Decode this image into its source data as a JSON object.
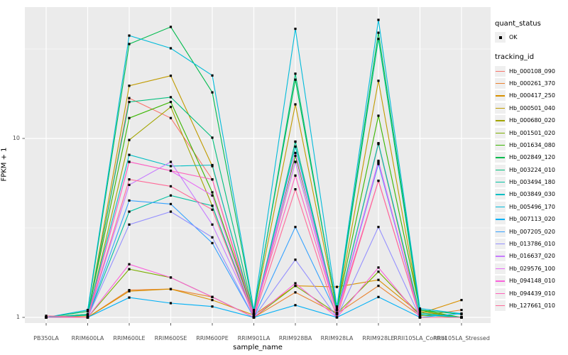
{
  "chart_data": {
    "type": "line",
    "xlabel": "sample_name",
    "ylabel": "FPKM + 1",
    "yscale": "log10",
    "ylim": [
      0.93,
      55
    ],
    "grid": "major-and-minor, white on grey panel",
    "legend_position": "right",
    "point_marker": "small black square (quant_status OK)",
    "point_color": "#000000",
    "panel_background": "#EBEBEB",
    "grid_color": "#FFFFFF",
    "yticks": [
      {
        "value": 1,
        "label": "1"
      },
      {
        "value": 10,
        "label": "10"
      }
    ],
    "minor_yticks": [
      3.162,
      31.62
    ],
    "categories": [
      "PB350LA",
      "RRIM600LA",
      "RRIM600LE",
      "RRIM600SE",
      "RRIM600PE",
      "RRIM901LA",
      "RRIM928BA",
      "RRIM928LA",
      "RRIM928LE",
      "RRII105LA_Control",
      "RRII105LA_Stressed"
    ],
    "series": [
      {
        "tracking_id": "Hb_000108_090",
        "quant_status": "OK",
        "color": "#F8766D",
        "values": [
          1.0,
          1.0,
          16.8,
          13.0,
          5.9,
          1.0,
          7.4,
          1.05,
          9.3,
          1.0,
          1.0
        ]
      },
      {
        "tracking_id": "Hb_000261_370",
        "quant_status": "OK",
        "color": "#EA8331",
        "values": [
          1.0,
          1.0,
          1.42,
          1.44,
          1.3,
          1.0,
          1.38,
          1.05,
          1.5,
          1.02,
          1.1
        ]
      },
      {
        "tracking_id": "Hb_000417_250",
        "quant_status": "OK",
        "color": "#D89000",
        "values": [
          1.0,
          1.0,
          1.4,
          1.44,
          1.25,
          1.03,
          1.5,
          1.48,
          1.62,
          1.05,
          1.25
        ]
      },
      {
        "tracking_id": "Hb_000501_040",
        "quant_status": "OK",
        "color": "#C09B00",
        "values": [
          1.0,
          1.02,
          19.7,
          22.4,
          7.0,
          1.05,
          15.5,
          1.1,
          21.0,
          1.08,
          1.0
        ]
      },
      {
        "tracking_id": "Hb_000680_020",
        "quant_status": "OK",
        "color": "#A3A500",
        "values": [
          1.0,
          1.0,
          9.8,
          15.0,
          4.2,
          1.0,
          9.6,
          1.05,
          9.4,
          1.0,
          1.0
        ]
      },
      {
        "tracking_id": "Hb_001501_020",
        "quant_status": "OK",
        "color": "#7CAE00",
        "values": [
          1.0,
          1.0,
          1.86,
          1.67,
          1.3,
          1.0,
          1.5,
          1.05,
          1.8,
          1.03,
          1.0
        ]
      },
      {
        "tracking_id": "Hb_001634_080",
        "quant_status": "OK",
        "color": "#39B600",
        "values": [
          1.0,
          1.04,
          13.0,
          16.0,
          5.0,
          1.04,
          8.0,
          1.1,
          13.4,
          1.1,
          1.0
        ]
      },
      {
        "tracking_id": "Hb_002849_120",
        "quant_status": "OK",
        "color": "#00BB4E",
        "values": [
          1.0,
          1.08,
          33.7,
          42.0,
          18.1,
          1.08,
          21.3,
          1.12,
          39.0,
          1.1,
          1.04
        ]
      },
      {
        "tracking_id": "Hb_003224_010",
        "quant_status": "OK",
        "color": "#00BF7D",
        "values": [
          1.0,
          1.04,
          16.0,
          17.0,
          10.1,
          1.05,
          23.0,
          1.1,
          36.0,
          1.06,
          1.0
        ]
      },
      {
        "tracking_id": "Hb_003494_180",
        "quant_status": "OK",
        "color": "#00C1A3",
        "values": [
          1.0,
          1.0,
          3.9,
          4.8,
          4.2,
          1.0,
          9.6,
          1.04,
          7.3,
          1.0,
          1.0
        ]
      },
      {
        "tracking_id": "Hb_003849_030",
        "quant_status": "OK",
        "color": "#00BFC4",
        "values": [
          1.0,
          1.03,
          8.1,
          7.0,
          7.1,
          1.02,
          9.0,
          1.06,
          9.4,
          1.04,
          1.0
        ]
      },
      {
        "tracking_id": "Hb_005496_170",
        "quant_status": "OK",
        "color": "#00BBDA",
        "values": [
          1.0,
          1.1,
          37.6,
          31.9,
          22.5,
          1.1,
          41.0,
          1.15,
          46.0,
          1.12,
          1.05
        ]
      },
      {
        "tracking_id": "Hb_007113_020",
        "quant_status": "OK",
        "color": "#00B0F6",
        "values": [
          1.0,
          1.0,
          1.29,
          1.2,
          1.15,
          1.0,
          1.17,
          1.0,
          1.3,
          1.0,
          1.05
        ]
      },
      {
        "tracking_id": "Hb_007205_020",
        "quant_status": "OK",
        "color": "#35A2FF",
        "values": [
          1.0,
          1.0,
          4.5,
          4.3,
          2.6,
          1.0,
          3.2,
          1.04,
          7.2,
          1.0,
          1.0
        ]
      },
      {
        "tracking_id": "Hb_013786_010",
        "quant_status": "OK",
        "color": "#9590FF",
        "values": [
          1.0,
          1.0,
          3.3,
          3.9,
          2.8,
          1.0,
          2.1,
          1.0,
          3.2,
          1.0,
          1.0
        ]
      },
      {
        "tracking_id": "Hb_016637_020",
        "quant_status": "OK",
        "color": "#C77CFF",
        "values": [
          1.0,
          1.0,
          5.5,
          7.4,
          3.3,
          1.04,
          7.4,
          1.05,
          7.5,
          1.0,
          1.0
        ]
      },
      {
        "tracking_id": "Hb_029576_100",
        "quant_status": "OK",
        "color": "#E76BF3",
        "values": [
          1.0,
          1.0,
          7.4,
          6.6,
          4.8,
          1.0,
          8.3,
          1.04,
          7.4,
          1.0,
          1.0
        ]
      },
      {
        "tracking_id": "Hb_094148_010",
        "quant_status": "OK",
        "color": "#FA62DB",
        "values": [
          1.0,
          1.0,
          1.98,
          1.67,
          1.3,
          1.0,
          1.55,
          1.0,
          1.9,
          1.0,
          1.0
        ]
      },
      {
        "tracking_id": "Hb_094439_010",
        "quant_status": "OK",
        "color": "#FF62BC",
        "values": [
          1.0,
          1.0,
          7.4,
          6.6,
          5.9,
          1.04,
          6.2,
          1.05,
          5.8,
          1.0,
          1.0
        ]
      },
      {
        "tracking_id": "Hb_127661_010",
        "quant_status": "OK",
        "color": "#FF6A98",
        "values": [
          1.02,
          1.0,
          5.9,
          5.4,
          4.0,
          1.0,
          5.2,
          1.0,
          5.8,
          1.0,
          1.0
        ]
      }
    ]
  },
  "axes": {
    "x_title": "sample_name",
    "y_title": "FPKM + 1"
  },
  "legend": {
    "quant_status_title": "quant_status",
    "quant_status_items": [
      {
        "label": "OK",
        "symbol": "black-point"
      }
    ],
    "tracking_id_title": "tracking_id"
  }
}
